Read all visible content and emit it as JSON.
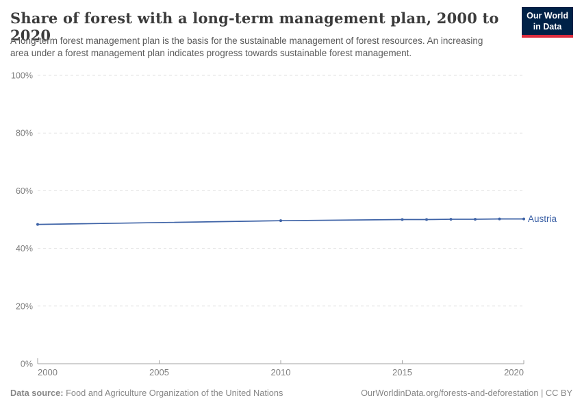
{
  "header": {
    "title": "Share of forest with a long-term management plan, 2000 to 2020",
    "subtitle": "A long-term forest management plan is the basis for the sustainable management of forest resources. An increasing area under a forest management plan indicates progress towards sustainable forest management.",
    "logo_line1": "Our World",
    "logo_line2": "in Data"
  },
  "chart_data": {
    "type": "line",
    "title": "Share of forest with a long-term management plan, 2000 to 2020",
    "xlabel": "",
    "ylabel": "",
    "x": {
      "min": 2000,
      "max": 2020,
      "ticks": [
        2000,
        2005,
        2010,
        2015,
        2020
      ]
    },
    "y": {
      "min": 0,
      "max": 100,
      "ticks": [
        0,
        20,
        40,
        60,
        80,
        100
      ],
      "tick_suffix": "%"
    },
    "grid": {
      "horizontal": true,
      "style": "dashed"
    },
    "legend_position": "end-of-line-label",
    "series": [
      {
        "name": "Austria",
        "color": "#3d62a6",
        "points": [
          [
            2000,
            48.3
          ],
          [
            2010,
            49.6
          ],
          [
            2015,
            50.0
          ],
          [
            2016,
            50.0
          ],
          [
            2017,
            50.1
          ],
          [
            2018,
            50.1
          ],
          [
            2019,
            50.2
          ],
          [
            2020,
            50.2
          ]
        ]
      }
    ]
  },
  "colors": {
    "accent_line": "#3d62a6",
    "gridline": "#e2e2e2",
    "axis": "#a3a3a3",
    "tick_label": "#7f7f7f",
    "logo_bg": "#002147",
    "logo_red": "#dc2c3e"
  },
  "footer": {
    "datasource_label": "Data source:",
    "datasource": "Food and Agriculture Organization of the United Nations",
    "license": "OurWorldinData.org/forests-and-deforestation | CC BY"
  }
}
